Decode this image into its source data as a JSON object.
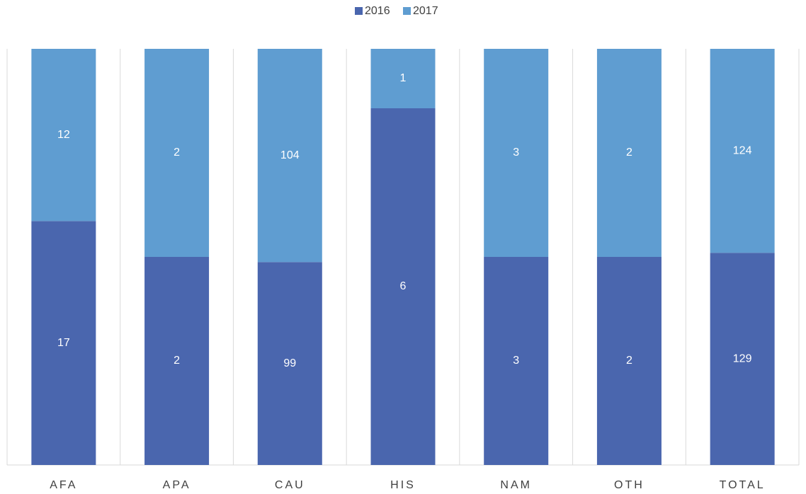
{
  "chart_data": {
    "type": "bar",
    "stacking": "percent",
    "categories": [
      "AFA",
      "APA",
      "CAU",
      "HIS",
      "NAM",
      "OTH",
      "TOTAL"
    ],
    "series": [
      {
        "name": "2016",
        "color": "#4a66ae",
        "values": [
          17,
          2,
          99,
          6,
          3,
          2,
          129
        ]
      },
      {
        "name": "2017",
        "color": "#5f9dd1",
        "values": [
          12,
          2,
          104,
          1,
          3,
          2,
          124
        ]
      }
    ],
    "legend": "top",
    "data_labels": true
  }
}
